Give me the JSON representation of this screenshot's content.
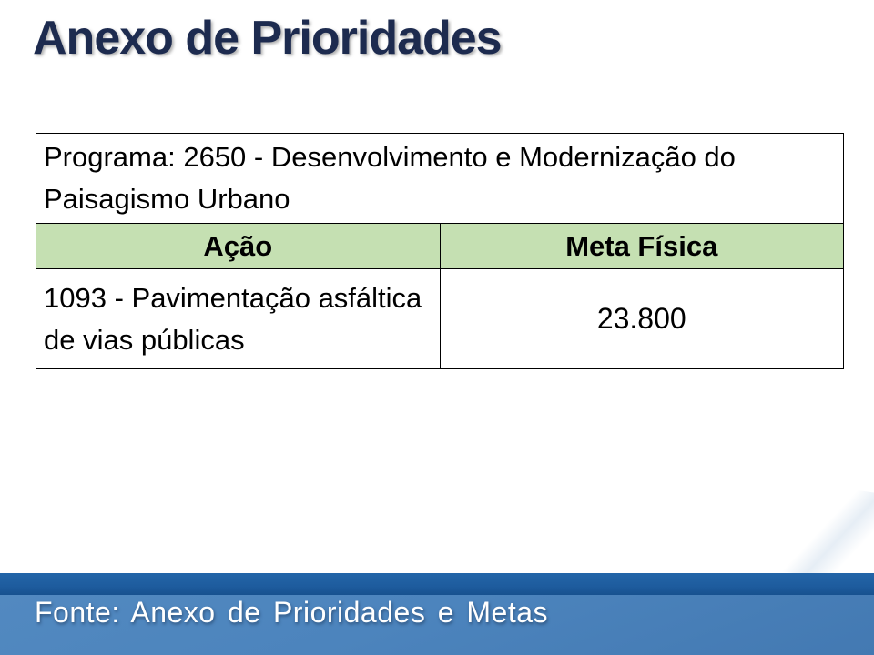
{
  "slide": {
    "title": "Anexo de Prioridades",
    "table": {
      "program": "Programa: 2650 - Desenvolvimento e Modernização do Paisagismo Urbano",
      "headers": [
        "Ação",
        "Meta Física"
      ],
      "rows": [
        {
          "acao": "1093 - Pavimentação asfáltica de vias públicas",
          "meta": "23.800"
        }
      ]
    },
    "footer": {
      "source": "Fonte: Anexo de Prioridades e Metas"
    },
    "colors": {
      "title_navy": "#1D2B4F",
      "header_green": "#C5E0B2",
      "band_dark": "#1E5C9E",
      "band_light": "#4C84BD",
      "text_black": "#000000",
      "footer_text": "#FFFFFF"
    }
  }
}
